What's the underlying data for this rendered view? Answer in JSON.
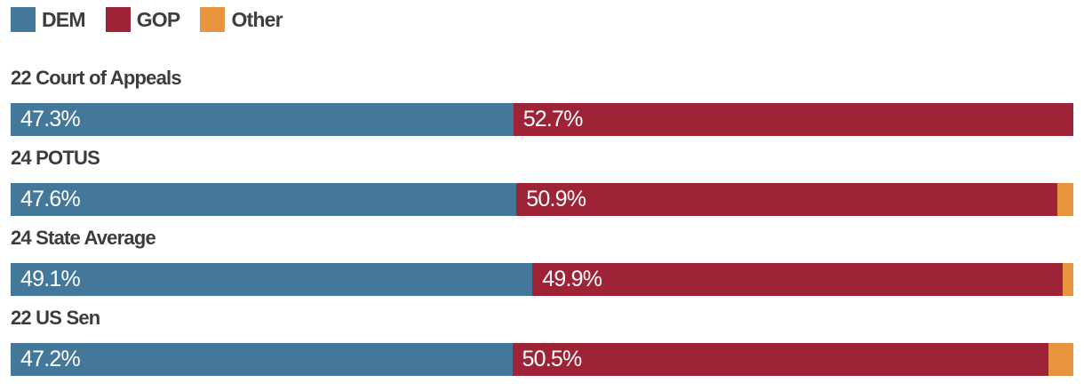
{
  "legend": {
    "items": [
      {
        "label": "DEM",
        "color": "#44789A"
      },
      {
        "label": "GOP",
        "color": "#9E2336"
      },
      {
        "label": "Other",
        "color": "#E8943E"
      }
    ]
  },
  "chart_data": {
    "type": "bar",
    "orientation": "horizontal",
    "stacked": true,
    "unit": "percent",
    "xlim": [
      0,
      100
    ],
    "grid": false,
    "legend_position": "top-left",
    "categories": [
      "22 Court of Appeals",
      "24 POTUS",
      "24 State Average",
      "22 US Sen"
    ],
    "series": [
      {
        "name": "DEM",
        "color": "#44789A",
        "values": [
          47.3,
          47.6,
          49.1,
          47.2
        ]
      },
      {
        "name": "GOP",
        "color": "#9E2336",
        "values": [
          52.7,
          50.9,
          49.9,
          50.5
        ]
      },
      {
        "name": "Other",
        "color": "#E8943E",
        "values": [
          0,
          1.5,
          1.0,
          2.3
        ]
      }
    ],
    "value_labels_note": "white percentage labels shown inside DEM and GOP segments only"
  },
  "rows": [
    {
      "title": "22 Court of Appeals",
      "dem_label": "47.3%",
      "gop_label": "52.7%",
      "other_label": ""
    },
    {
      "title": "24 POTUS",
      "dem_label": "47.6%",
      "gop_label": "50.9%",
      "other_label": ""
    },
    {
      "title": "24 State Average",
      "dem_label": "49.1%",
      "gop_label": "49.9%",
      "other_label": ""
    },
    {
      "title": "22 US Sen",
      "dem_label": "47.2%",
      "gop_label": "50.5%",
      "other_label": ""
    }
  ]
}
